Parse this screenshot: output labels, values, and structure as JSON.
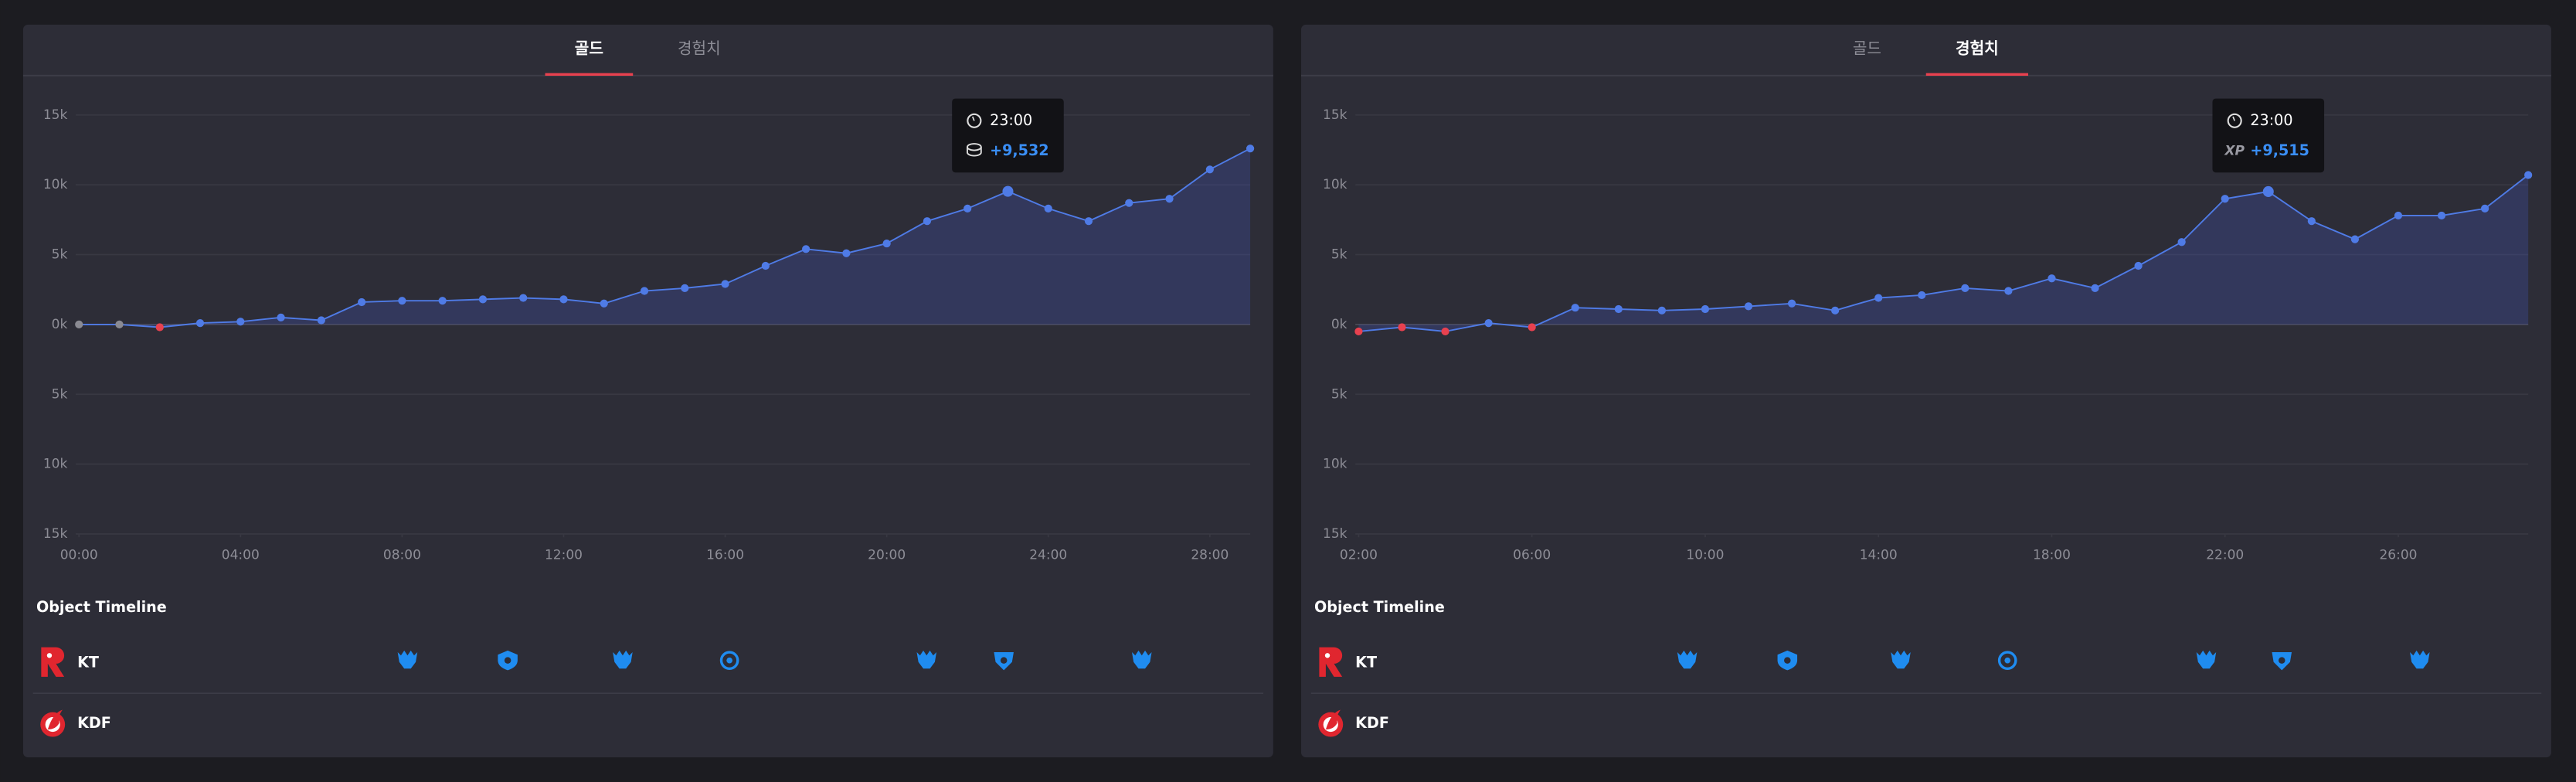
{
  "panels": [
    {
      "tabs": [
        "골드",
        "경험치"
      ],
      "active": 0,
      "timeline_title": "Object Timeline",
      "teams": [
        "KT",
        "KDF"
      ]
    },
    {
      "tabs": [
        "골드",
        "경험치"
      ],
      "active": 1,
      "timeline_title": "Object Timeline",
      "teams": [
        "KT",
        "KDF"
      ]
    }
  ],
  "chart_data": [
    {
      "type": "line",
      "x": [
        0,
        1,
        2,
        3,
        4,
        5,
        6,
        7,
        8,
        9,
        10,
        11,
        12,
        13,
        14,
        15,
        16,
        17,
        18,
        19,
        20,
        21,
        22,
        23,
        24,
        25,
        26,
        27,
        28,
        29
      ],
      "values": [
        0,
        0,
        -200,
        100,
        200,
        500,
        300,
        1600,
        1700,
        1700,
        1800,
        1900,
        1800,
        1500,
        2400,
        2600,
        2900,
        4200,
        5400,
        5100,
        5800,
        7400,
        8300,
        9532,
        8300,
        7400,
        8700,
        9000,
        11100,
        12600
      ],
      "color": "#4f7be6",
      "negative_color": "#e8414f",
      "zero_color": "#8a8a92",
      "xlim": [
        0,
        29
      ],
      "ylim": [
        -15000,
        15000
      ],
      "xticks": [
        {
          "value": 0,
          "label": "00:00"
        },
        {
          "value": 4,
          "label": "04:00"
        },
        {
          "value": 8,
          "label": "08:00"
        },
        {
          "value": 12,
          "label": "12:00"
        },
        {
          "value": 16,
          "label": "16:00"
        },
        {
          "value": 20,
          "label": "20:00"
        },
        {
          "value": 24,
          "label": "24:00"
        },
        {
          "value": 28,
          "label": "28:00"
        }
      ],
      "yticks": [
        {
          "value": 15000,
          "label": "15k"
        },
        {
          "value": 10000,
          "label": "10k"
        },
        {
          "value": 5000,
          "label": "5k"
        },
        {
          "value": 0,
          "label": "0k"
        },
        {
          "value": -5000,
          "label": "5k"
        },
        {
          "value": -10000,
          "label": "10k"
        },
        {
          "value": -15000,
          "label": "15k"
        }
      ],
      "grid": true,
      "tooltip": {
        "x": 23,
        "time": "23:00",
        "label": "+9,532"
      }
    },
    {
      "type": "line",
      "x": [
        2,
        3,
        4,
        5,
        6,
        7,
        8,
        9,
        10,
        11,
        12,
        13,
        14,
        15,
        16,
        17,
        18,
        19,
        20,
        21,
        22,
        23,
        24,
        25,
        26,
        27,
        28,
        29
      ],
      "values": [
        -500,
        -200,
        -500,
        100,
        -200,
        1200,
        1100,
        1000,
        1100,
        1300,
        1500,
        1000,
        1900,
        2100,
        2600,
        2400,
        3300,
        2600,
        4200,
        5900,
        9000,
        9515,
        7400,
        6100,
        7800,
        7800,
        8300,
        10700
      ],
      "color": "#4f7be6",
      "negative_color": "#e8414f",
      "zero_color": "#8a8a92",
      "xlim": [
        2,
        29
      ],
      "ylim": [
        -15000,
        15000
      ],
      "xticks": [
        {
          "value": 2,
          "label": "02:00"
        },
        {
          "value": 6,
          "label": "06:00"
        },
        {
          "value": 10,
          "label": "10:00"
        },
        {
          "value": 14,
          "label": "14:00"
        },
        {
          "value": 18,
          "label": "18:00"
        },
        {
          "value": 22,
          "label": "22:00"
        },
        {
          "value": 26,
          "label": "26:00"
        }
      ],
      "yticks": [
        {
          "value": 15000,
          "label": "15k"
        },
        {
          "value": 10000,
          "label": "10k"
        },
        {
          "value": 5000,
          "label": "5k"
        },
        {
          "value": 0,
          "label": "0k"
        },
        {
          "value": -5000,
          "label": "5k"
        },
        {
          "value": -10000,
          "label": "10k"
        },
        {
          "value": -15000,
          "label": "15k"
        }
      ],
      "grid": true,
      "tooltip": {
        "x": 23,
        "time": "23:00",
        "label": "+9,515",
        "icon_label": "XP"
      }
    }
  ]
}
